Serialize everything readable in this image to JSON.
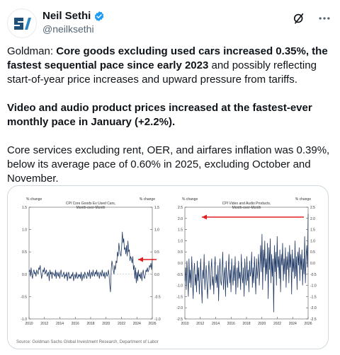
{
  "header": {
    "author_name": "Neil Sethi",
    "handle": "@neilksethi",
    "icons": {
      "verified": "verified-badge-icon",
      "grok": "grok-icon",
      "more": "more-icon"
    },
    "accent": "#1d9bf0"
  },
  "tweet": {
    "p1_lead": "Goldman: ",
    "p1_bold": "Core goods excluding used cars increased 0.35%, the fastest sequential pace since early 2023",
    "p1_tail": " and possibly reflecting start-of-year price increases and upward pressure from tariffs.",
    "p2_bold": "Video and audio product prices increased at the fastest-ever monthly pace in January (+2.2%).",
    "p3": "Core services excluding rent, OER, and airfares inflation was 0.39%, below its average pace of 0.60% in 2025, excluding October and November."
  },
  "card": {
    "source": "Source: Goldman Sachs Global Investment Research, Department of Labor"
  },
  "chart_data": [
    {
      "type": "line",
      "title": "CPI Core Goods Ex Used Cars, Month-over-Month",
      "ylabel_left": "% change",
      "ylabel_right": "% change",
      "x_ticks": [
        "2010",
        "2012",
        "2014",
        "2016",
        "2018",
        "2020",
        "2022",
        "2024",
        "2026"
      ],
      "y_ticks": [
        "1.5",
        "1.0",
        "0.5",
        "0.0",
        "-0.5",
        "-1.0"
      ],
      "ylim": [
        -1.0,
        1.5
      ],
      "xlim": [
        2010,
        2026
      ],
      "line_color": "#1f3864",
      "arrow_color": "#e02020",
      "zero_line": true,
      "series": [
        {
          "values": [
            0.05,
            0.1,
            -0.05,
            0.15,
            0.0,
            -0.1,
            0.05,
            0.1,
            0.0,
            0.05,
            -0.05,
            0.1,
            0.05,
            0.0,
            0.15,
            0.1,
            0.2,
            0.05,
            -0.1,
            0.0,
            0.1,
            0.05,
            0.15,
            0.0,
            0.05,
            0.1,
            -0.05,
            0.0,
            0.05,
            -0.15,
            0.1,
            0.0,
            0.05,
            -0.1,
            0.05,
            0.0,
            0.0,
            -0.05,
            0.1,
            -0.1,
            0.05,
            0.0,
            -0.05,
            0.05,
            -0.1,
            0.0,
            0.1,
            -0.05,
            -0.05,
            0.0,
            0.05,
            -0.1,
            0.0,
            -0.05,
            0.05,
            -0.15,
            0.0,
            0.05,
            -0.1,
            -0.05,
            -0.1,
            0.0,
            -0.05,
            0.05,
            -0.15,
            -0.05,
            0.0,
            -0.1,
            0.05,
            -0.05,
            -0.1,
            0.0,
            -0.05,
            0.0,
            -0.1,
            0.05,
            -0.15,
            -0.05,
            0.0,
            -0.1,
            0.05,
            0.0,
            -0.05,
            -0.1,
            0.05,
            0.0,
            -0.05,
            0.1,
            -0.1,
            0.0,
            0.05,
            -0.05,
            0.1,
            0.0,
            -0.05,
            0.05,
            0.0,
            0.1,
            -0.05,
            0.05,
            0.0,
            -0.1,
            0.05,
            0.0,
            -0.05,
            0.1,
            0.0,
            -0.05,
            0.05,
            -0.1,
            0.0,
            0.05,
            -0.05,
            0.0,
            0.1,
            -0.05,
            -0.25,
            -0.4,
            0.1,
            0.3,
            0.2,
            0.1,
            0.0,
            0.2,
            0.1,
            0.3,
            0.25,
            0.5,
            0.4,
            0.7,
            0.55,
            0.45,
            0.4,
            0.6,
            0.95,
            0.7,
            0.8,
            0.55,
            0.6,
            0.45,
            0.65,
            0.4,
            0.75,
            0.5,
            0.55,
            0.3,
            0.4,
            0.35,
            0.25,
            0.4,
            0.1,
            0.2,
            -0.1,
            0.15,
            -0.2,
            0.05,
            -0.15,
            0.1,
            -0.05,
            0.0,
            -0.1,
            0.05,
            -0.15,
            0.0,
            0.1,
            -0.05,
            -0.1,
            0.0,
            0.1,
            0.05,
            0.15,
            0.05,
            0.1,
            0.2,
            0.15,
            0.25,
            0.1,
            0.35
          ]
        }
      ]
    },
    {
      "type": "line",
      "title": "CPI Video and Audio Products, Month-over-Month",
      "ylabel_left": "% change",
      "ylabel_right": "% change",
      "x_ticks": [
        "2010",
        "2012",
        "2014",
        "2016",
        "2018",
        "2020",
        "2022",
        "2024",
        "2026"
      ],
      "y_ticks": [
        "2.5",
        "2.0",
        "1.5",
        "1.0",
        "0.5",
        "0.0",
        "-0.5",
        "-1.0",
        "-1.5",
        "-2.0",
        "-2.5"
      ],
      "ylim": [
        -2.5,
        2.5
      ],
      "xlim": [
        2010,
        2026
      ],
      "line_color": "#1f3864",
      "arrow_color": "#e02020",
      "zero_line": true,
      "series": [
        {
          "values": [
            -0.8,
            -0.2,
            -1.2,
            0.1,
            -0.6,
            -1.5,
            0.2,
            -0.9,
            -0.3,
            -1.1,
            0.3,
            -0.7,
            -1.6,
            -0.4,
            0.0,
            -1.0,
            -0.5,
            -1.3,
            0.1,
            -0.8,
            -0.2,
            -1.4,
            -0.6,
            0.2,
            -0.9,
            -1.8,
            -0.3,
            -0.7,
            0.4,
            -1.2,
            -0.5,
            -0.1,
            -1.0,
            -1.6,
            -0.4,
            0.1,
            -0.8,
            -1.2,
            -0.3,
            0.2,
            -1.0,
            -0.6,
            -1.4,
            -0.2,
            0.3,
            -0.9,
            -0.5,
            -1.1,
            -0.1,
            -1.7,
            -0.4,
            0.2,
            -0.8,
            -1.0,
            -0.3,
            0.5,
            -1.2,
            -0.6,
            -0.2,
            -1.5,
            0.1,
            -0.7,
            -1.1,
            -0.4,
            0.4,
            -0.9,
            -0.3,
            -1.3,
            0.2,
            -0.6,
            -1.0,
            -0.1,
            -0.8,
            0.3,
            -1.4,
            -0.5,
            -0.2,
            -1.1,
            0.1,
            -0.7,
            -0.4,
            -1.2,
            0.4,
            -0.6,
            -0.9,
            -0.2,
            -1.5,
            0.2,
            -0.5,
            -1.0,
            0.3,
            -0.8,
            -0.3,
            -1.3,
            0.1,
            -0.6,
            -0.4,
            0.5,
            -1.1,
            -0.2,
            -0.9,
            0.3,
            -0.5,
            -1.4,
            0.2,
            -0.7,
            -0.3,
            0.4,
            -1.0,
            -0.1,
            0.8,
            -0.4,
            1.3,
            -1.2,
            0.6,
            -0.2,
            1.0,
            -0.8,
            0.2,
            -0.5,
            0.9,
            -1.6,
            0.7,
            -0.3,
            1.1,
            -0.9,
            0.4,
            -0.6,
            0.2,
            -2.2,
            0.8,
            -0.4,
            0.5,
            -1.0,
            1.2,
            -0.2,
            0.3,
            -0.7,
            0.6,
            -1.3,
            0.4,
            -0.1,
            0.9,
            -0.8,
            0.2,
            -0.5,
            0.7,
            -1.1,
            0.3,
            -0.3,
            0.5,
            -0.9,
            0.8,
            -0.2,
            0.4,
            -1.4,
            0.6,
            -0.4,
            0.2,
            -0.7,
            1.0,
            -0.6,
            0.3,
            -1.2,
            0.5,
            -0.1,
            0.7,
            -0.8,
            0.4,
            -0.3,
            0.6,
            -1.0,
            0.2,
            -0.5,
            1.2,
            -0.9,
            0.3,
            0.8,
            -0.2,
            2.2
          ]
        }
      ]
    }
  ]
}
